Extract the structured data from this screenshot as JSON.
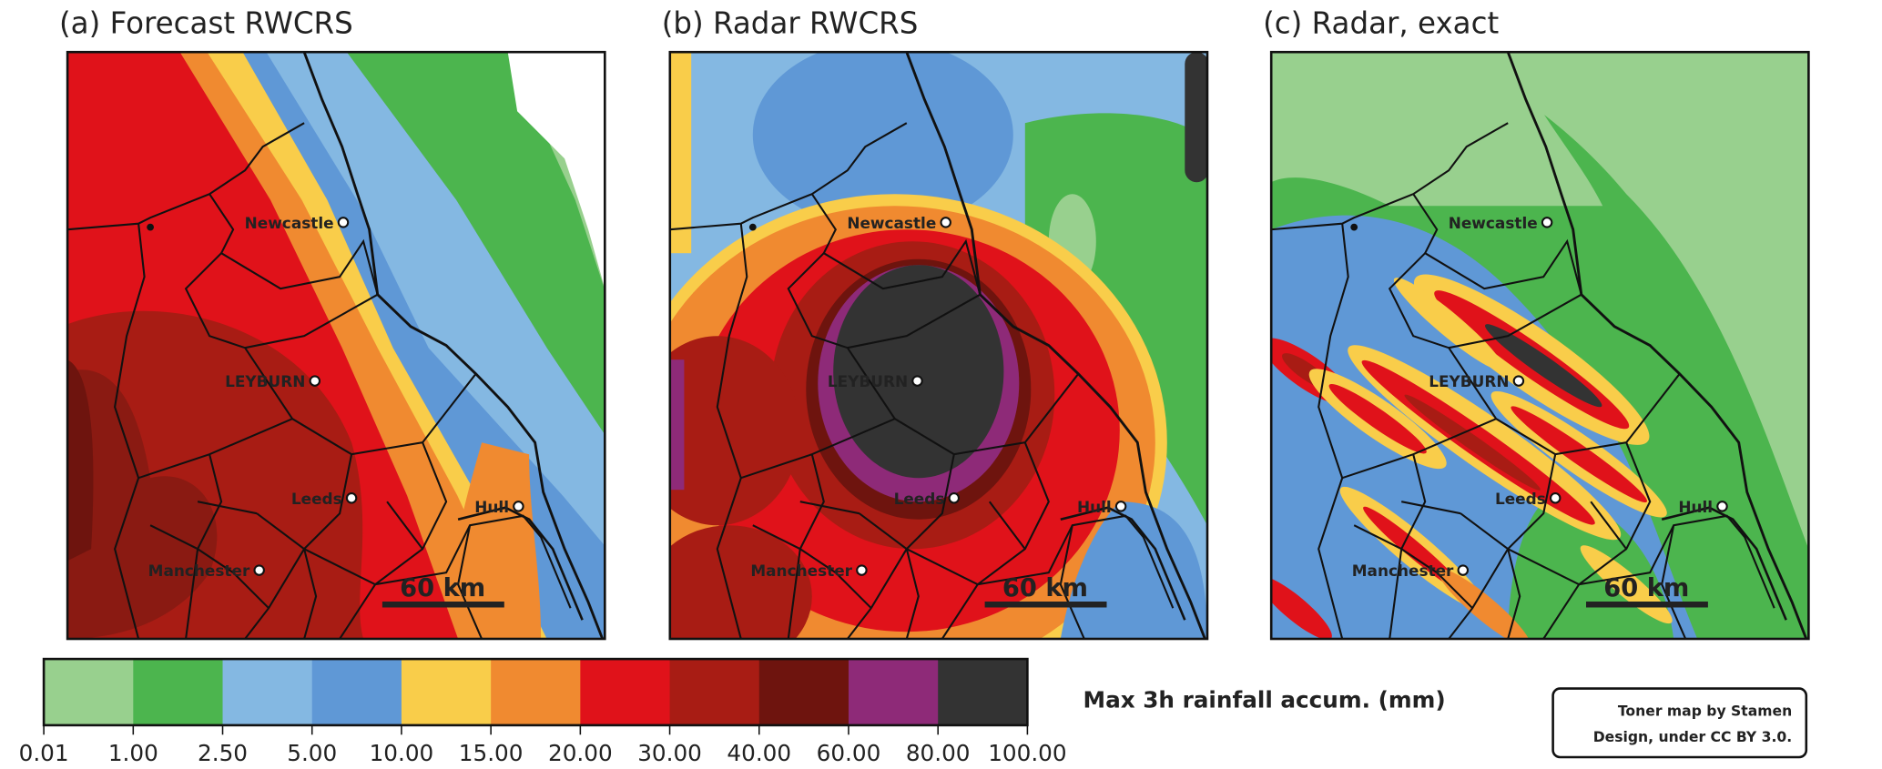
{
  "panels": [
    {
      "title": "(a) Forecast RWCRS"
    },
    {
      "title": "(b) Radar RWCRS"
    },
    {
      "title": "(c) Radar, exact"
    }
  ],
  "cities": [
    "Newcastle",
    "LEYBURN",
    "Leeds",
    "Hull",
    "Manchester"
  ],
  "scale_bar": "60 km",
  "colorbar": {
    "label": "Max 3h rainfall accum. (mm)",
    "ticks": [
      "0.01",
      "1.00",
      "2.50",
      "5.00",
      "10.00",
      "15.00",
      "20.00",
      "30.00",
      "40.00",
      "60.00",
      "80.00",
      "100.00"
    ],
    "colors": [
      "#98d08e",
      "#4cb54e",
      "#84b8e2",
      "#5f98d6",
      "#f9cd4a",
      "#f08a30",
      "#e0121a",
      "#a81c14",
      "#6e140e",
      "#8e2a78",
      "#333333"
    ]
  },
  "attribution": {
    "line1": "Toner map by Stamen",
    "line2": "Design, under CC BY 3.0."
  }
}
